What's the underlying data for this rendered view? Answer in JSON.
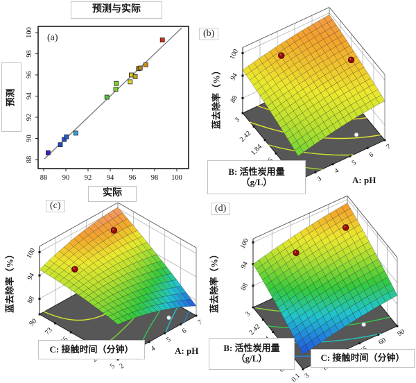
{
  "figure_title": "预测与实际",
  "style": {
    "floor_color": "#575757",
    "design_point_color": "#9b0d0d",
    "design_point_edge": "#4d0404",
    "floor_point_color": "#ffffff",
    "surface_colormap": [
      [
        0.0,
        "#2135cc"
      ],
      [
        0.15,
        "#2277dd"
      ],
      [
        0.3,
        "#22c4cc"
      ],
      [
        0.45,
        "#35c93c"
      ],
      [
        0.62,
        "#b8e030"
      ],
      [
        0.72,
        "#ece82e"
      ],
      [
        0.85,
        "#f2a12c"
      ],
      [
        1.0,
        "#f2928a"
      ]
    ],
    "scatter_colormap": [
      [
        0.0,
        "#4814d2"
      ],
      [
        0.1,
        "#1f41c0"
      ],
      [
        0.2,
        "#2a63d8"
      ],
      [
        0.27,
        "#35b0dc"
      ],
      [
        0.45,
        "#2fbf3f"
      ],
      [
        0.6,
        "#7ed32f"
      ],
      [
        0.7,
        "#e2e22e"
      ],
      [
        0.78,
        "#b08818"
      ],
      [
        0.87,
        "#e08c1e"
      ],
      [
        1.0,
        "#cc2121"
      ]
    ],
    "scatter_color_domain": [
      88.2,
      98.9
    ]
  },
  "chart_data": [
    {
      "id": "a",
      "type": "scatter",
      "panel_letter": "(a)",
      "title": "预测与实际",
      "xlabel": "实际",
      "ylabel": "预测",
      "xticks": [
        88,
        90,
        92,
        94,
        96,
        98,
        100
      ],
      "yticks": [
        88,
        90,
        92,
        94,
        96,
        98,
        100
      ],
      "xlim": [
        87.2,
        100.9
      ],
      "ylim": [
        87.2,
        100.9
      ],
      "identity_line": true,
      "points_actual_predicted": [
        [
          88.4,
          88.65
        ],
        [
          89.5,
          89.4
        ],
        [
          89.85,
          89.9
        ],
        [
          90.05,
          90.15
        ],
        [
          90.9,
          90.5
        ],
        [
          93.7,
          93.9
        ],
        [
          94.5,
          94.65
        ],
        [
          94.55,
          95.2
        ],
        [
          95.8,
          95.35
        ],
        [
          95.9,
          96.0
        ],
        [
          96.25,
          95.85
        ],
        [
          96.55,
          96.6
        ],
        [
          96.7,
          96.65
        ],
        [
          97.2,
          96.95
        ],
        [
          98.7,
          99.3
        ]
      ]
    },
    {
      "id": "b",
      "type": "surface",
      "panel_letter": "(b)",
      "zlabel": "蓝去除率（%）",
      "z_ticks": [
        88,
        94,
        100
      ],
      "x_axis": {
        "label": "A: pH",
        "ticks": [
          2,
          3,
          4,
          5,
          6,
          7
        ]
      },
      "y_axis": {
        "label_line1": "B: 活性炭用量",
        "label_line2": "（g/L）",
        "ticks": [
          3,
          2.42,
          1.84,
          1.26,
          0.68,
          0.1
        ]
      },
      "surface_model": {
        "desc": "z = c0 + c1*u + c2*v + c3*u^2 + c4*v^2 + c5*u*v ; u along A from front, v along B from front",
        "coeffs": [
          90.5,
          6.0,
          6.5,
          -2.0,
          -1.5,
          0.0
        ]
      },
      "z_range_approx": [
        90.5,
        99.5
      ],
      "contour_levels": [
        92,
        93.5,
        95,
        96.5,
        98
      ],
      "color_domain": [
        78,
        102
      ],
      "design_points_above": [
        {
          "u": 0.35,
          "v": 0.85
        },
        {
          "u": 0.9,
          "v": 0.45
        }
      ],
      "floor_point": {
        "u": 0.8,
        "v": 0.2
      }
    },
    {
      "id": "c",
      "type": "surface",
      "panel_letter": "(c)",
      "zlabel": "蓝去除率（%）",
      "z_ticks": [
        88,
        94,
        100
      ],
      "x_axis": {
        "label": "A: pH",
        "ticks": [
          2,
          3,
          4,
          5,
          6,
          7
        ]
      },
      "y_axis": {
        "label_line1": "C: 接触时间（分钟）",
        "label_line2": "",
        "ticks": [
          90,
          73,
          56,
          39,
          22,
          5
        ]
      },
      "surface_model": {
        "desc": "z = c0 + c1*u + c2*v + c3*u^2 + c4*v^2 + c5*u*v ; u along A from front, v along C from front",
        "coeffs": [
          93.0,
          -2.5,
          4.5,
          -4.0,
          -2.0,
          11.3
        ]
      },
      "z_range_approx": [
        86.5,
        100.3
      ],
      "contour_levels": [
        88,
        90,
        92,
        94,
        96
      ],
      "color_domain": [
        85.5,
        101
      ],
      "design_points_above": [
        {
          "u": 0.15,
          "v": 0.7
        },
        {
          "u": 0.75,
          "v": 0.8
        }
      ],
      "floor_point": {
        "u": 0.8,
        "v": 0.15
      }
    },
    {
      "id": "d",
      "type": "surface",
      "panel_letter": "(d)",
      "zlabel": "蓝去除率（%）",
      "z_ticks": [
        88,
        94,
        100
      ],
      "x_axis": {
        "label": "C: 接触时间（分钟）",
        "ticks": [
          3,
          15,
          30,
          45,
          60,
          90
        ]
      },
      "y_axis": {
        "label_line1": "B: 活性炭用量",
        "label_line2": "（g/L）",
        "ticks": [
          3,
          2.42,
          1.84,
          1.26,
          0.68,
          0.1
        ]
      },
      "surface_model": {
        "desc": "z = c0 + c1*u + c2*v + c3*u^2 + c4*v^2 + c5*u*v ; u along C from front, v along B from front",
        "coeffs": [
          86.0,
          6.5,
          10.0,
          -2.0,
          -2.0,
          0.5
        ]
      },
      "z_range_approx": [
        86.0,
        99.0
      ],
      "contour_levels": [
        88,
        90,
        92,
        94,
        96
      ],
      "color_domain": [
        85,
        101
      ],
      "design_points_above": [
        {
          "u": 0.35,
          "v": 0.8
        },
        {
          "u": 0.85,
          "v": 0.75
        }
      ],
      "floor_point": {
        "u": 0.75,
        "v": 0.2
      }
    }
  ]
}
